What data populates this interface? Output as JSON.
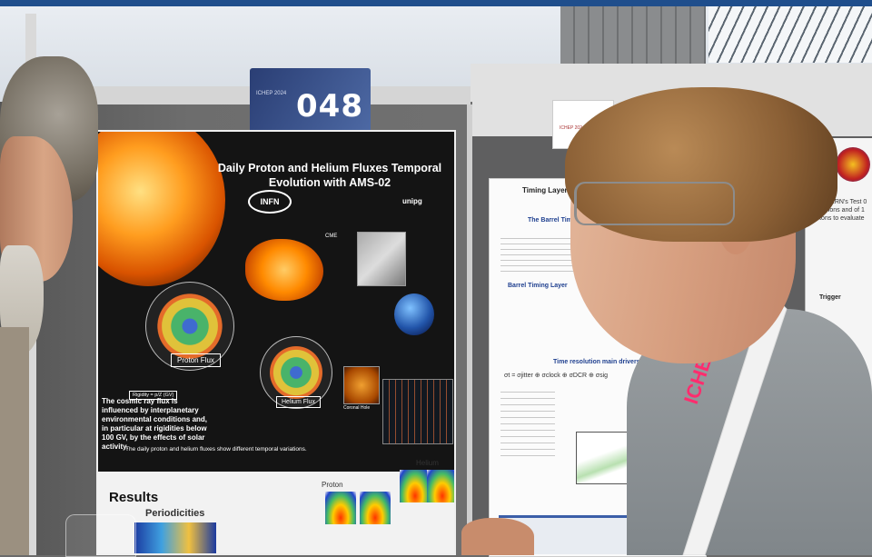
{
  "board_number": "048",
  "board_sign_small": "ICHEP 2024",
  "poster_main": {
    "title": "Daily Proton and Helium Fluxes Temporal Evolution with AMS-02",
    "logo_left": "INFN",
    "logo_right": "unipg",
    "cme_label": "CME",
    "proton_flux_label": "Proton Flux",
    "helium_flux_label": "Helium Flux",
    "rigidity_label": "Rigidity = p/Z (GV)",
    "corona_label": "Coronal Hole",
    "cosmic_text": "The cosmic ray flux is influenced by interplanetary environmental conditions and, in particular at rigidities below 100 GV, by the effects of solar activity.",
    "variations_text": "The daily proton and helium fluxes show different temporal variations.",
    "results_heading": "Results",
    "periodicities_label": "Periodicities",
    "proton_col_label": "Proton",
    "helium_col_label": "Helium"
  },
  "poster_right": {
    "title": "Timing Layer perfo",
    "section1": "The Barrel Timing Layer for Ph",
    "layer_label": "Barrel Timing Layer",
    "section2": "Time resolution main drivers",
    "formula": "σt = σjitter ⊕ σclock ⊕ σDCR ⊕ σsig"
  },
  "poster_far": {
    "text": "es at CERN's Test 0 GeV pions and of 1 protons to evaluate",
    "trigger": "Trigger"
  },
  "ichep_sign": "ICHEP 2024",
  "lanyard_text": "ICHEP 2024"
}
